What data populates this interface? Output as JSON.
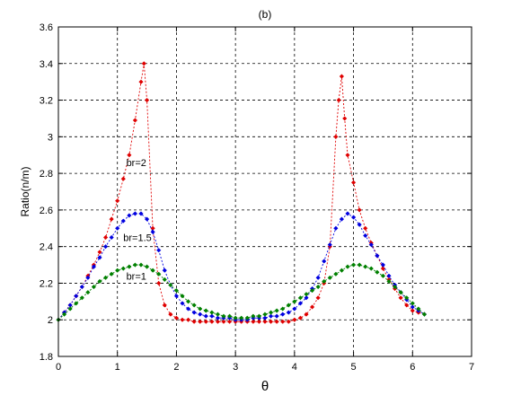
{
  "chart_data": {
    "type": "line",
    "title": "(b)",
    "xlabel": "θ",
    "ylabel": "Ratio(n/m)",
    "xlim": [
      0,
      7
    ],
    "ylim": [
      1.8,
      3.6
    ],
    "xticks": [
      0,
      1,
      2,
      3,
      4,
      5,
      6,
      7
    ],
    "yticks": [
      1.8,
      2,
      2.2,
      2.4,
      2.6,
      2.8,
      3,
      3.2,
      3.4,
      3.6
    ],
    "grid": true,
    "line_style": "dashed",
    "marker": "diamond",
    "series": [
      {
        "name": "br=2",
        "color": "#e00000",
        "x": [
          0.0,
          0.1,
          0.2,
          0.3,
          0.4,
          0.5,
          0.6,
          0.7,
          0.8,
          0.9,
          1.0,
          1.1,
          1.2,
          1.3,
          1.4,
          1.45,
          1.5,
          1.6,
          1.7,
          1.8,
          1.9,
          2.0,
          2.1,
          2.2,
          2.3,
          2.4,
          2.5,
          2.6,
          2.7,
          2.8,
          2.9,
          3.0,
          3.1,
          3.2,
          3.3,
          3.4,
          3.5,
          3.6,
          3.7,
          3.8,
          3.9,
          4.0,
          4.1,
          4.2,
          4.3,
          4.4,
          4.5,
          4.6,
          4.7,
          4.75,
          4.8,
          4.85,
          4.9,
          5.0,
          5.1,
          5.2,
          5.3,
          5.4,
          5.5,
          5.6,
          5.7,
          5.8,
          5.9,
          6.0,
          6.1,
          6.2
        ],
        "values": [
          2.0,
          2.04,
          2.08,
          2.13,
          2.18,
          2.24,
          2.3,
          2.37,
          2.45,
          2.55,
          2.65,
          2.77,
          2.9,
          3.09,
          3.3,
          3.4,
          3.2,
          2.5,
          2.2,
          2.08,
          2.03,
          2.01,
          2.0,
          2.0,
          1.99,
          1.99,
          1.99,
          1.99,
          1.99,
          1.99,
          1.99,
          1.99,
          1.99,
          1.99,
          1.99,
          1.99,
          1.99,
          1.99,
          1.99,
          1.99,
          1.99,
          2.0,
          2.01,
          2.03,
          2.07,
          2.12,
          2.2,
          2.4,
          3.0,
          3.2,
          3.33,
          3.1,
          2.9,
          2.75,
          2.6,
          2.5,
          2.42,
          2.35,
          2.28,
          2.22,
          2.17,
          2.12,
          2.08,
          2.05,
          2.04,
          2.03
        ]
      },
      {
        "name": "br=1.5",
        "color": "#0000e0",
        "x": [
          0.0,
          0.1,
          0.2,
          0.3,
          0.4,
          0.5,
          0.6,
          0.7,
          0.8,
          0.9,
          1.0,
          1.1,
          1.2,
          1.3,
          1.4,
          1.5,
          1.6,
          1.7,
          1.8,
          1.9,
          2.0,
          2.1,
          2.2,
          2.3,
          2.4,
          2.5,
          2.6,
          2.7,
          2.8,
          2.9,
          3.0,
          3.1,
          3.2,
          3.3,
          3.4,
          3.5,
          3.6,
          3.7,
          3.8,
          3.9,
          4.0,
          4.1,
          4.2,
          4.3,
          4.4,
          4.5,
          4.6,
          4.7,
          4.8,
          4.9,
          5.0,
          5.1,
          5.2,
          5.3,
          5.4,
          5.5,
          5.6,
          5.7,
          5.8,
          5.9,
          6.0,
          6.1,
          6.2
        ],
        "values": [
          2.0,
          2.04,
          2.08,
          2.13,
          2.18,
          2.23,
          2.29,
          2.34,
          2.4,
          2.45,
          2.5,
          2.54,
          2.57,
          2.58,
          2.58,
          2.55,
          2.48,
          2.38,
          2.27,
          2.19,
          2.13,
          2.09,
          2.06,
          2.04,
          2.03,
          2.02,
          2.02,
          2.01,
          2.01,
          2.01,
          2.0,
          2.0,
          2.0,
          2.01,
          2.01,
          2.01,
          2.02,
          2.02,
          2.03,
          2.04,
          2.06,
          2.09,
          2.12,
          2.17,
          2.23,
          2.32,
          2.41,
          2.5,
          2.55,
          2.58,
          2.56,
          2.52,
          2.46,
          2.41,
          2.35,
          2.3,
          2.24,
          2.19,
          2.15,
          2.11,
          2.07,
          2.05,
          2.03
        ]
      },
      {
        "name": "br=1",
        "color": "#008000",
        "x": [
          0.0,
          0.1,
          0.2,
          0.3,
          0.4,
          0.5,
          0.6,
          0.7,
          0.8,
          0.9,
          1.0,
          1.1,
          1.2,
          1.3,
          1.4,
          1.5,
          1.6,
          1.7,
          1.8,
          1.9,
          2.0,
          2.1,
          2.2,
          2.3,
          2.4,
          2.5,
          2.6,
          2.7,
          2.8,
          2.9,
          3.0,
          3.1,
          3.2,
          3.3,
          3.4,
          3.5,
          3.6,
          3.7,
          3.8,
          3.9,
          4.0,
          4.1,
          4.2,
          4.3,
          4.4,
          4.5,
          4.6,
          4.7,
          4.8,
          4.9,
          5.0,
          5.1,
          5.2,
          5.3,
          5.4,
          5.5,
          5.6,
          5.7,
          5.8,
          5.9,
          6.0,
          6.1,
          6.2
        ],
        "values": [
          2.0,
          2.03,
          2.06,
          2.09,
          2.12,
          2.15,
          2.18,
          2.21,
          2.23,
          2.25,
          2.27,
          2.28,
          2.29,
          2.3,
          2.3,
          2.29,
          2.27,
          2.25,
          2.22,
          2.19,
          2.16,
          2.13,
          2.1,
          2.08,
          2.06,
          2.05,
          2.04,
          2.03,
          2.02,
          2.02,
          2.01,
          2.01,
          2.01,
          2.02,
          2.02,
          2.03,
          2.04,
          2.05,
          2.06,
          2.08,
          2.1,
          2.12,
          2.14,
          2.16,
          2.18,
          2.21,
          2.23,
          2.25,
          2.27,
          2.29,
          2.3,
          2.3,
          2.29,
          2.28,
          2.26,
          2.24,
          2.21,
          2.18,
          2.15,
          2.12,
          2.09,
          2.06,
          2.03
        ]
      }
    ],
    "annotations": [
      {
        "text": "br=2",
        "x": 1.15,
        "y": 2.84
      },
      {
        "text": "br=1.5",
        "x": 1.1,
        "y": 2.43
      },
      {
        "text": "br=1",
        "x": 1.15,
        "y": 2.22
      }
    ]
  }
}
